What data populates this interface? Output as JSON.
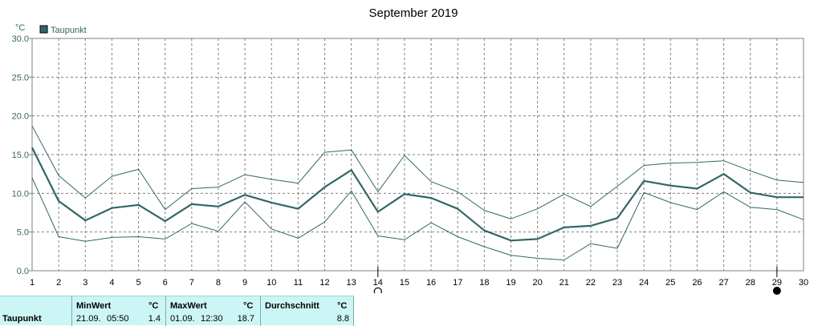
{
  "chart_data": {
    "type": "line",
    "title": "September 2019",
    "yunit": "°C",
    "ylim": [
      0,
      30
    ],
    "yticks": [
      "0.0",
      "5.0",
      "10.0",
      "15.0",
      "20.0",
      "25.0",
      "30.0"
    ],
    "x": [
      1,
      2,
      3,
      4,
      5,
      6,
      7,
      8,
      9,
      10,
      11,
      12,
      13,
      14,
      15,
      16,
      17,
      18,
      19,
      20,
      21,
      22,
      23,
      24,
      25,
      26,
      27,
      28,
      29,
      30
    ],
    "grid": true,
    "legend_position": "top-left",
    "series": [
      {
        "name": "Taupunkt",
        "role": "average",
        "color": "#336666",
        "values": [
          15.9,
          9.0,
          6.5,
          8.1,
          8.5,
          6.4,
          8.6,
          8.3,
          9.8,
          8.8,
          8.0,
          10.8,
          13.0,
          7.6,
          9.9,
          9.4,
          8.0,
          5.2,
          3.9,
          4.1,
          5.6,
          5.8,
          6.8,
          11.6,
          11.0,
          10.6,
          12.5,
          10.1,
          9.5,
          9.5
        ]
      },
      {
        "name": "",
        "role": "max",
        "color": "#336666",
        "values": [
          18.7,
          12.3,
          9.4,
          12.2,
          13.1,
          7.9,
          10.6,
          10.8,
          12.4,
          11.8,
          11.3,
          15.3,
          15.6,
          10.2,
          14.9,
          11.5,
          10.2,
          7.8,
          6.7,
          8.0,
          9.9,
          8.3,
          10.9,
          13.6,
          13.9,
          14.0,
          14.2,
          12.9,
          11.7,
          11.4
        ]
      },
      {
        "name": "",
        "role": "min",
        "color": "#336666",
        "values": [
          12.0,
          4.4,
          3.8,
          4.3,
          4.4,
          4.1,
          6.1,
          5.1,
          8.9,
          5.4,
          4.2,
          6.3,
          10.3,
          4.5,
          4.0,
          6.2,
          4.4,
          3.1,
          2.0,
          1.6,
          1.4,
          3.5,
          2.9,
          10.1,
          8.8,
          7.9,
          10.2,
          8.2,
          7.9,
          6.6
        ]
      }
    ],
    "markers": [
      {
        "x": 14,
        "symbol": "first-quarter-moon"
      },
      {
        "x": 29,
        "symbol": "new-moon"
      }
    ]
  },
  "stats": {
    "row_label": "Taupunkt",
    "min_header": "MinWert",
    "min_unit": "°C",
    "min_date": "21.09.",
    "min_time": "05:50",
    "min_value": "1.4",
    "max_header": "MaxWert",
    "max_unit": "°C",
    "max_date": "01.09.",
    "max_time": "12:30",
    "max_value": "18.7",
    "avg_header": "Durchschnitt",
    "avg_unit": "°C",
    "avg_value": "8.8"
  }
}
